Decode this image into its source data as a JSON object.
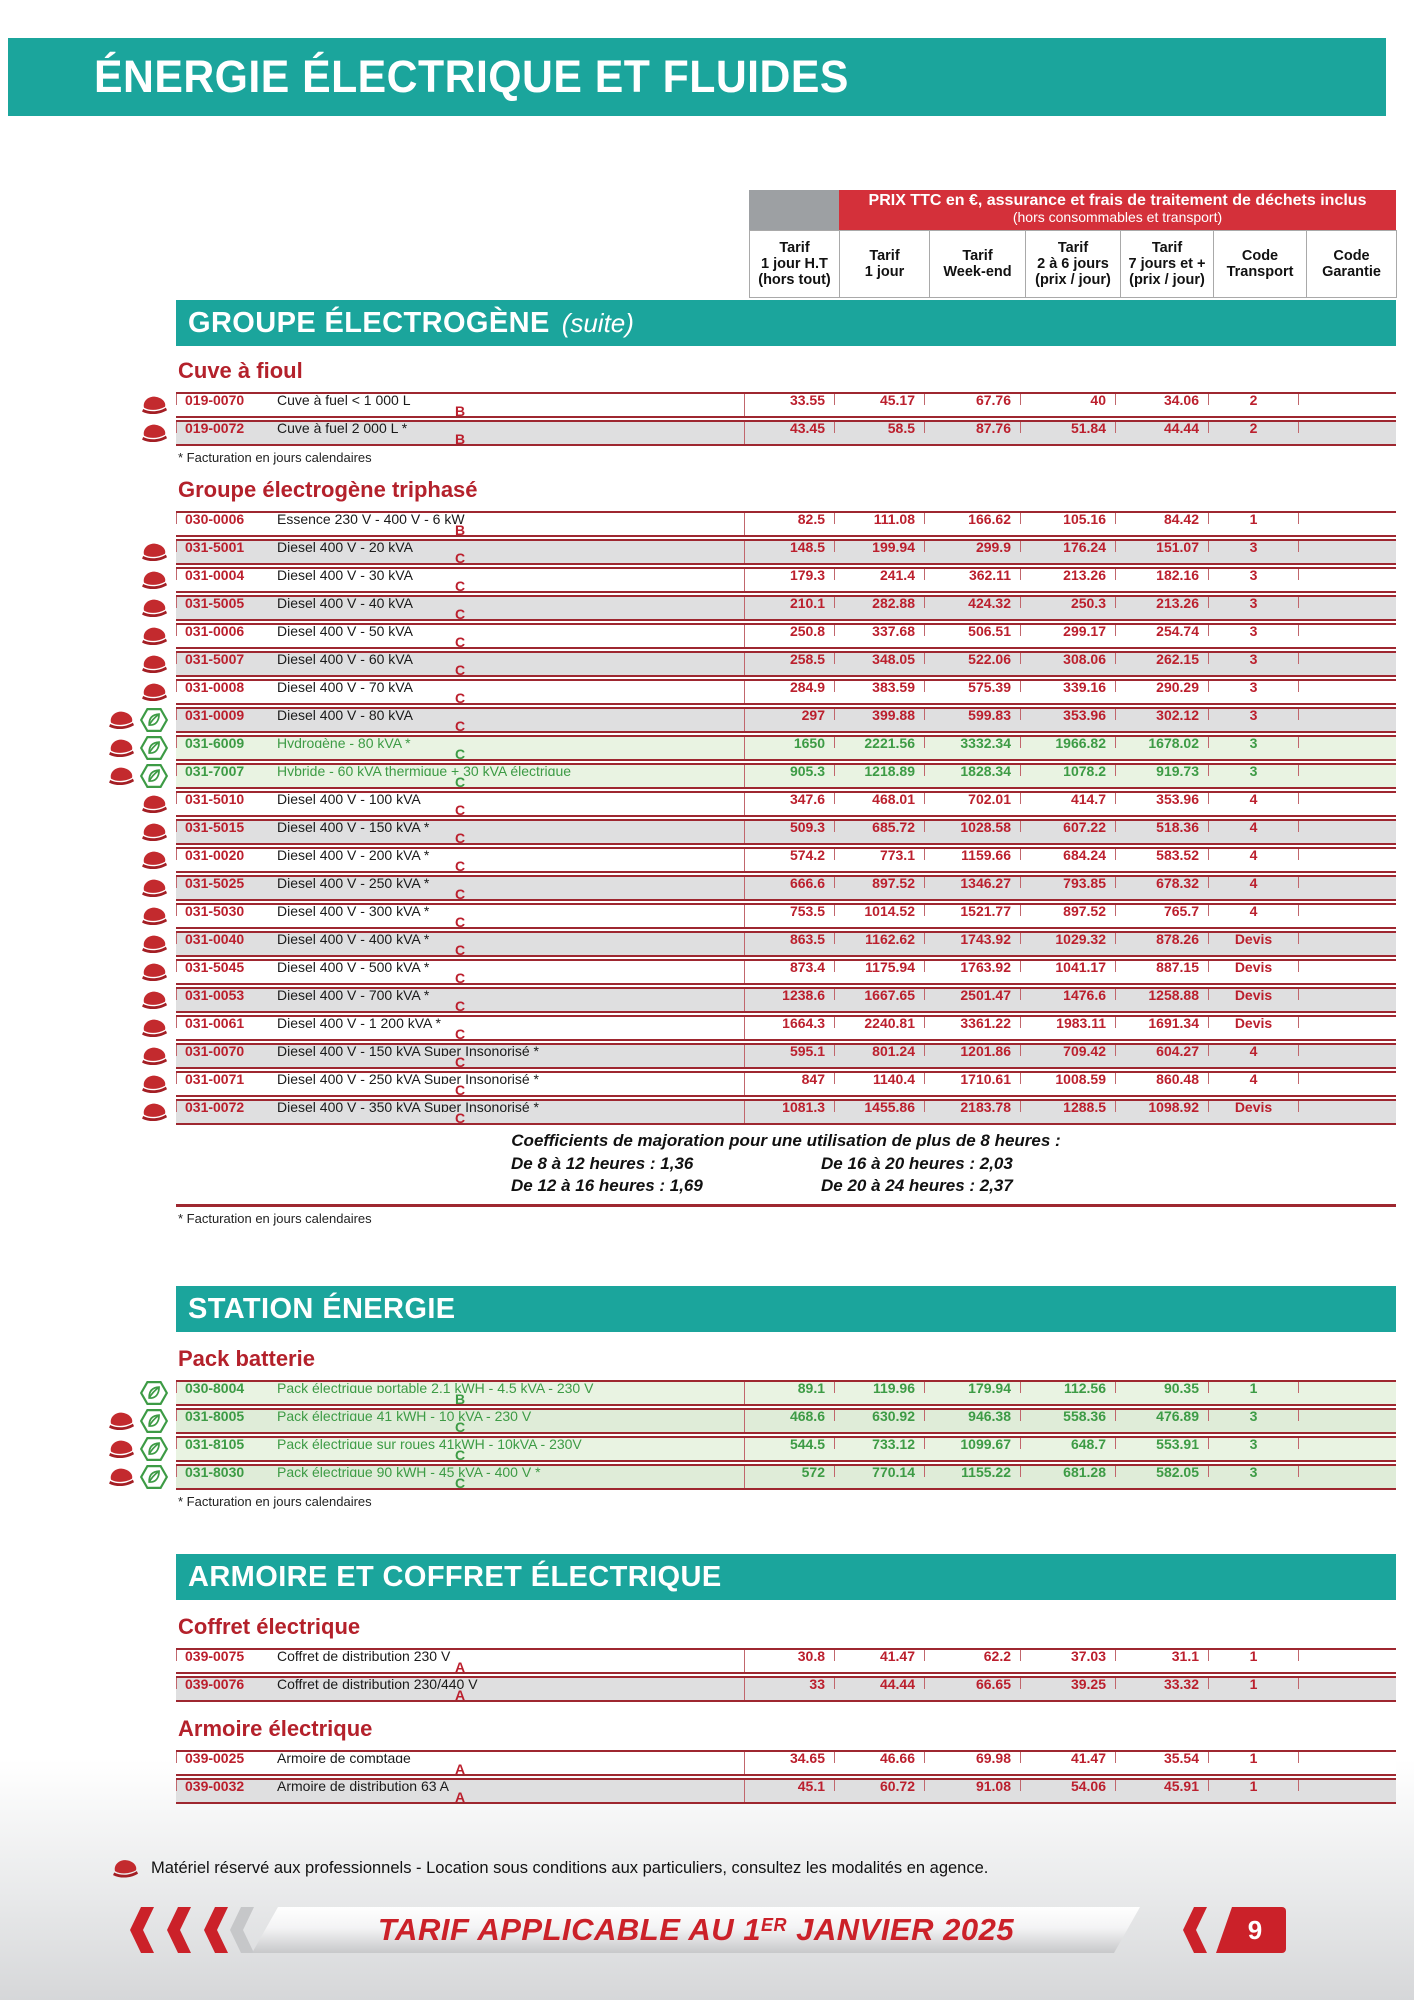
{
  "page": {
    "title": "ÉNERGIE ÉLECTRIQUE ET FLUIDES",
    "legend": "Matériel réservé aux professionnels - Location sous conditions aux particuliers, consultez les modalités en agence.",
    "footer": {
      "text_prefix": "TARIF APPLICABLE AU 1",
      "text_sup": "ER",
      "text_suffix": " JANVIER 2025",
      "page_number": "9"
    }
  },
  "colors": {
    "teal": "#1ba59c",
    "banner_red": "#d4303a",
    "border_dark_red": "#9e2730",
    "value_red": "#bb1f2d",
    "heading_red": "#b4212b",
    "eco_green": "#3d9b45",
    "row_gray": "#dfdfe0",
    "row_green": "#e9f3e2",
    "footer_red": "#cb2129",
    "header_gray_cell": "#9da0a3"
  },
  "price_header": {
    "banner_line1": "PRIX TTC en €, assurance et frais de traitement de déchets inclus",
    "banner_line2": "(hors consommables et transport)",
    "columns": [
      "Tarif\n1 jour H.T\n(hors tout)",
      "Tarif\n1 jour",
      "Tarif\nWeek-end",
      "Tarif\n2 à 6 jours\n(prix / jour)",
      "Tarif\n7 jours et +\n(prix / jour)",
      "Code\nTransport",
      "Code\nGarantie"
    ]
  },
  "sections": [
    {
      "banner": "GROUPE ÉLECTROGÈNE",
      "banner_suffix": "(suite)",
      "groups": [
        {
          "heading": "Cuve à fioul",
          "rows": [
            {
              "code": "019-0070",
              "label": "Cuve à fuel  < 1 000 L",
              "prices": [
                "33,55",
                "45,17",
                "67,76",
                "40",
                "34,06"
              ],
              "transport": "2",
              "garantie": "B",
              "icons": [
                "pro-cap"
              ],
              "shade": "w",
              "green": false
            },
            {
              "code": "019-0072",
              "label": "Cuve à fuel  2 000 L *",
              "prices": [
                "43,45",
                "58,5",
                "87,76",
                "51,84",
                "44,44"
              ],
              "transport": "2",
              "garantie": "B",
              "icons": [
                "pro-cap"
              ],
              "shade": "g",
              "green": false
            }
          ],
          "footnote": "* Facturation en jours calendaires"
        },
        {
          "heading": "Groupe électrogène triphasé",
          "rows": [
            {
              "code": "030-0006",
              "label": "Essence 230 V - 400 V - 6 kW",
              "prices": [
                "82,5",
                "111,08",
                "166,62",
                "105,16",
                "84,42"
              ],
              "transport": "1",
              "garantie": "B",
              "icons": [],
              "shade": "w",
              "green": false
            },
            {
              "code": "031-5001",
              "label": "Diesel 400 V - 20 kVA",
              "prices": [
                "148,5",
                "199,94",
                "299,9",
                "176,24",
                "151,07"
              ],
              "transport": "3",
              "garantie": "C",
              "icons": [
                "pro-cap"
              ],
              "shade": "g",
              "green": false
            },
            {
              "code": "031-0004",
              "label": "Diesel 400 V - 30 kVA",
              "prices": [
                "179,3",
                "241,4",
                "362,11",
                "213,26",
                "182,16"
              ],
              "transport": "3",
              "garantie": "C",
              "icons": [
                "pro-cap"
              ],
              "shade": "w",
              "green": false
            },
            {
              "code": "031-5005",
              "label": "Diesel 400 V - 40 kVA",
              "prices": [
                "210,1",
                "282,88",
                "424,32",
                "250,3",
                "213,26"
              ],
              "transport": "3",
              "garantie": "C",
              "icons": [
                "pro-cap"
              ],
              "shade": "g",
              "green": false
            },
            {
              "code": "031-0006",
              "label": "Diesel 400 V - 50 kVA",
              "prices": [
                "250,8",
                "337,68",
                "506,51",
                "299,17",
                "254,74"
              ],
              "transport": "3",
              "garantie": "C",
              "icons": [
                "pro-cap"
              ],
              "shade": "w",
              "green": false
            },
            {
              "code": "031-5007",
              "label": "Diesel 400 V - 60 kVA",
              "prices": [
                "258,5",
                "348,05",
                "522,06",
                "308,06",
                "262,15"
              ],
              "transport": "3",
              "garantie": "C",
              "icons": [
                "pro-cap"
              ],
              "shade": "g",
              "green": false
            },
            {
              "code": "031-0008",
              "label": "Diesel 400 V - 70 kVA",
              "prices": [
                "284,9",
                "383,59",
                "575,39",
                "339,16",
                "290,29"
              ],
              "transport": "3",
              "garantie": "C",
              "icons": [
                "pro-cap"
              ],
              "shade": "w",
              "green": false
            },
            {
              "code": "031-0009",
              "label": "Diesel 400 V - 80 kVA",
              "prices": [
                "297",
                "399,88",
                "599,83",
                "353,96",
                "302,12"
              ],
              "transport": "3",
              "garantie": "C",
              "icons": [
                "pro-cap",
                "eco-leaf"
              ],
              "shade": "g",
              "green": false
            },
            {
              "code": "031-6009",
              "label": "Hydrogène - 80 kVA *",
              "prices": [
                "1650",
                "2221,56",
                "3332,34",
                "1966,82",
                "1678,02"
              ],
              "transport": "3",
              "garantie": "C",
              "icons": [
                "pro-cap",
                "eco-leaf"
              ],
              "shade": "gr",
              "green": true
            },
            {
              "code": "031-7007",
              "label": "Hybride - 60 kVA thermique + 30 kVA électrique",
              "prices": [
                "905,3",
                "1218,89",
                "1828,34",
                "1078,2",
                "919,73"
              ],
              "transport": "3",
              "garantie": "C",
              "icons": [
                "pro-cap",
                "eco-leaf"
              ],
              "shade": "gr",
              "green": true
            },
            {
              "code": "031-5010",
              "label": "Diesel 400 V - 100 kVA",
              "prices": [
                "347,6",
                "468,01",
                "702,01",
                "414,7",
                "353,96"
              ],
              "transport": "4",
              "garantie": "C",
              "icons": [
                "pro-cap"
              ],
              "shade": "w",
              "green": false
            },
            {
              "code": "031-5015",
              "label": "Diesel 400 V - 150 kVA *",
              "prices": [
                "509,3",
                "685,72",
                "1028,58",
                "607,22",
                "518,36"
              ],
              "transport": "4",
              "garantie": "C",
              "icons": [
                "pro-cap"
              ],
              "shade": "g",
              "green": false
            },
            {
              "code": "031-0020",
              "label": "Diesel 400 V - 200 kVA *",
              "prices": [
                "574,2",
                "773,1",
                "1159,66",
                "684,24",
                "583,52"
              ],
              "transport": "4",
              "garantie": "C",
              "icons": [
                "pro-cap"
              ],
              "shade": "w",
              "green": false
            },
            {
              "code": "031-5025",
              "label": "Diesel 400 V - 250 kVA *",
              "prices": [
                "666,6",
                "897,52",
                "1346,27",
                "793,85",
                "678,32"
              ],
              "transport": "4",
              "garantie": "C",
              "icons": [
                "pro-cap"
              ],
              "shade": "g",
              "green": false
            },
            {
              "code": "031-5030",
              "label": "Diesel 400 V - 300 kVA *",
              "prices": [
                "753,5",
                "1014,52",
                "1521,77",
                "897,52",
                "765,7"
              ],
              "transport": "4",
              "garantie": "C",
              "icons": [
                "pro-cap"
              ],
              "shade": "w",
              "green": false
            },
            {
              "code": "031-0040",
              "label": "Diesel 400 V - 400 kVA *",
              "prices": [
                "863,5",
                "1162,62",
                "1743,92",
                "1029,32",
                "878,26"
              ],
              "transport": "Devis",
              "garantie": "C",
              "icons": [
                "pro-cap"
              ],
              "shade": "g",
              "green": false
            },
            {
              "code": "031-5045",
              "label": "Diesel 400 V - 500 kVA *",
              "prices": [
                "873,4",
                "1175,94",
                "1763,92",
                "1041,17",
                "887,15"
              ],
              "transport": "Devis",
              "garantie": "C",
              "icons": [
                "pro-cap"
              ],
              "shade": "w",
              "green": false
            },
            {
              "code": "031-0053",
              "label": "Diesel 400 V - 700 kVA *",
              "prices": [
                "1238,6",
                "1667,65",
                "2501,47",
                "1476,6",
                "1258,88"
              ],
              "transport": "Devis",
              "garantie": "C",
              "icons": [
                "pro-cap"
              ],
              "shade": "g",
              "green": false
            },
            {
              "code": "031-0061",
              "label": "Diesel 400 V - 1 200 kVA *",
              "prices": [
                "1664,3",
                "2240,81",
                "3361,22",
                "1983,11",
                "1691,34"
              ],
              "transport": "Devis",
              "garantie": "C",
              "icons": [
                "pro-cap"
              ],
              "shade": "w",
              "green": false
            },
            {
              "code": "031-0070",
              "label": "Diesel 400 V - 150 kVA Super Insonorisé *",
              "prices": [
                "595,1",
                "801,24",
                "1201,86",
                "709,42",
                "604,27"
              ],
              "transport": "4",
              "garantie": "C",
              "icons": [
                "pro-cap"
              ],
              "shade": "g",
              "green": false
            },
            {
              "code": "031-0071",
              "label": "Diesel 400 V - 250 kVA Super Insonorisé *",
              "prices": [
                "847",
                "1140,4",
                "1710,61",
                "1008,59",
                "860,48"
              ],
              "transport": "4",
              "garantie": "C",
              "icons": [
                "pro-cap"
              ],
              "shade": "w",
              "green": false
            },
            {
              "code": "031-0072",
              "label": "Diesel 400 V - 350 kVA Super Insonorisé *",
              "prices": [
                "1081,3",
                "1455,86",
                "2183,78",
                "1288,5",
                "1098,92"
              ],
              "transport": "Devis",
              "garantie": "C",
              "icons": [
                "pro-cap"
              ],
              "shade": "g",
              "green": false
            }
          ],
          "coefficients": {
            "title": "Coefficients de majoration pour une utilisation de plus de 8 heures :",
            "items": [
              "De 8 à 12 heures : 1,36",
              "De 16 à 20 heures : 2,03",
              "De 12 à 16 heures : 1,69",
              "De 20 à 24 heures : 2,37"
            ]
          },
          "end_rule": true,
          "footnote": "* Facturation en jours calendaires"
        }
      ]
    },
    {
      "banner": "STATION ÉNERGIE",
      "groups": [
        {
          "heading": "Pack batterie",
          "rows": [
            {
              "code": "030-8004",
              "label": "Pack électrique portable 2,1 kWH - 4,5 kVA - 230 V",
              "prices": [
                "89,1",
                "119,96",
                "179,94",
                "112,56",
                "90,35"
              ],
              "transport": "1",
              "garantie": "B",
              "icons": [
                "eco-leaf"
              ],
              "shade": "gr",
              "green": true
            },
            {
              "code": "031-8005",
              "label": "Pack électrique 41 kWH - 10 kVA - 230 V",
              "prices": [
                "468,6",
                "630,92",
                "946,38",
                "558,36",
                "476,89"
              ],
              "transport": "3",
              "garantie": "C",
              "icons": [
                "pro-cap",
                "eco-leaf"
              ],
              "shade": "gr2",
              "green": true
            },
            {
              "code": "031-8105",
              "label": "Pack électrique sur roues  41kWH - 10kVA - 230V",
              "prices": [
                "544,5",
                "733,12",
                "1099,67",
                "648,7",
                "553,91"
              ],
              "transport": "3",
              "garantie": "C",
              "icons": [
                "pro-cap",
                "eco-leaf"
              ],
              "shade": "gr",
              "green": true
            },
            {
              "code": "031-8030",
              "label": "Pack électrique 90 kWH - 45 kVA - 400 V *",
              "prices": [
                "572",
                "770,14",
                "1155,22",
                "681,28",
                "582,05"
              ],
              "transport": "3",
              "garantie": "C",
              "icons": [
                "pro-cap",
                "eco-leaf"
              ],
              "shade": "gr2",
              "green": true
            }
          ],
          "footnote": "* Facturation en jours calendaires"
        }
      ]
    },
    {
      "banner": "ARMOIRE ET COFFRET ÉLECTRIQUE",
      "groups": [
        {
          "heading": "Coffret électrique",
          "rows": [
            {
              "code": "039-0075",
              "label": "Coffret de distribution 230 V",
              "prices": [
                "30,8",
                "41,47",
                "62,2",
                "37,03",
                "31,1"
              ],
              "transport": "1",
              "garantie": "A",
              "icons": [],
              "shade": "w",
              "green": false
            },
            {
              "code": "039-0076",
              "label": "Coffret de distribution 230/440 V",
              "prices": [
                "33",
                "44,44",
                "66,65",
                "39,25",
                "33,32"
              ],
              "transport": "1",
              "garantie": "A",
              "icons": [],
              "shade": "g",
              "green": false
            }
          ]
        },
        {
          "heading": "Armoire électrique",
          "rows": [
            {
              "code": "039-0025",
              "label": "Armoire de comptage",
              "prices": [
                "34,65",
                "46,66",
                "69,98",
                "41,47",
                "35,54"
              ],
              "transport": "1",
              "garantie": "A",
              "icons": [],
              "shade": "w",
              "green": false
            },
            {
              "code": "039-0032",
              "label": "Armoire de distribution 63 A",
              "prices": [
                "45,1",
                "60,72",
                "91,08",
                "54,06",
                "45,91"
              ],
              "transport": "1",
              "garantie": "A",
              "icons": [],
              "shade": "g",
              "green": false
            }
          ]
        }
      ]
    }
  ]
}
